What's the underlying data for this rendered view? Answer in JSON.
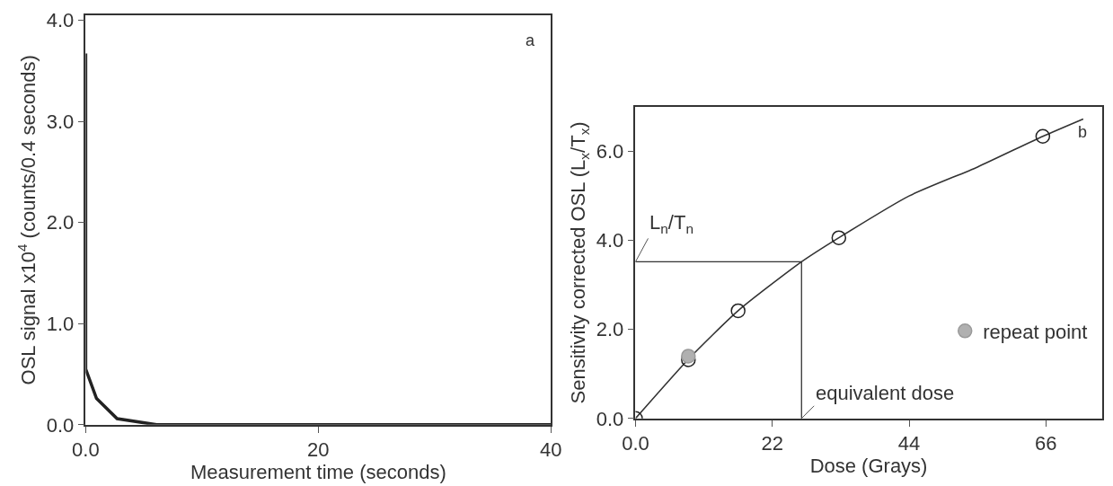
{
  "chart_data": [
    {
      "type": "line",
      "annotations": [
        "a"
      ],
      "xlabel": "Measurement time (seconds)",
      "ylabel": "OSL signal x10$^{4}$ (counts/0.4 seconds)",
      "x": [
        0,
        0,
        0.93,
        2.7,
        6.1,
        40
      ],
      "series": [
        {
          "color": "#222222",
          "values": [
            3.67,
            0.55,
            0.26,
            0.06,
            0,
            0
          ]
        }
      ],
      "xlim": [
        0,
        40
      ],
      "xticks": [
        {
          "value": 0,
          "label": "0.0"
        },
        20,
        40
      ],
      "ylim": [
        0,
        4.05
      ],
      "yticks": [
        {
          "value": 0,
          "label": "0.0"
        },
        {
          "value": 1,
          "label": "1.0"
        },
        {
          "value": 2,
          "label": "2.0"
        },
        {
          "value": 3,
          "label": "3.0"
        },
        {
          "value": 4,
          "label": "4.0"
        }
      ],
      "legend": false
    },
    {
      "type": "scatter",
      "annotations": [
        "b"
      ],
      "xlabel": "Dose (Grays)",
      "ylabel": "Sensitivity corrected OSL (L$_{x}$/T$_{x}$)",
      "series": [
        {
          "type": "line",
          "color": "#333333",
          "x": [
            0,
            8.5,
            16.5,
            26.7,
            32.7,
            44,
            55,
            65.5,
            72
          ],
          "values": [
            0,
            1.33,
            2.42,
            3.52,
            4.06,
            5.0,
            5.65,
            6.34,
            6.73
          ]
        },
        {
          "type": "scatter",
          "marker": "circle",
          "color": "#222222",
          "x": [
            0,
            8.5,
            16.5,
            32.7,
            65.5
          ],
          "values": [
            0,
            1.32,
            2.42,
            4.06,
            6.34
          ]
        },
        {
          "type": "scatter",
          "marker": "circle",
          "name": "repeat point",
          "color": "#b0b0b0",
          "x": [
            8.5
          ],
          "values": [
            1.4
          ]
        }
      ],
      "ref_lines": [
        {
          "axis": "y",
          "value": 3.52,
          "label": "L$_{n}$/T$_{n}$"
        },
        {
          "axis": "x",
          "value": 26.7,
          "label": "equivalent dose"
        }
      ],
      "xlim": [
        0,
        75
      ],
      "xticks": [
        {
          "value": 0,
          "label": "0.0"
        },
        22,
        44,
        66
      ],
      "ylim": [
        0,
        7.0
      ],
      "yticks": [
        {
          "value": 0,
          "label": "0.0"
        },
        {
          "value": 2,
          "label": "2.0"
        },
        {
          "value": 4,
          "label": "4.0"
        },
        {
          "value": 6,
          "label": "6.0"
        }
      ],
      "legend": "bottom right"
    }
  ]
}
